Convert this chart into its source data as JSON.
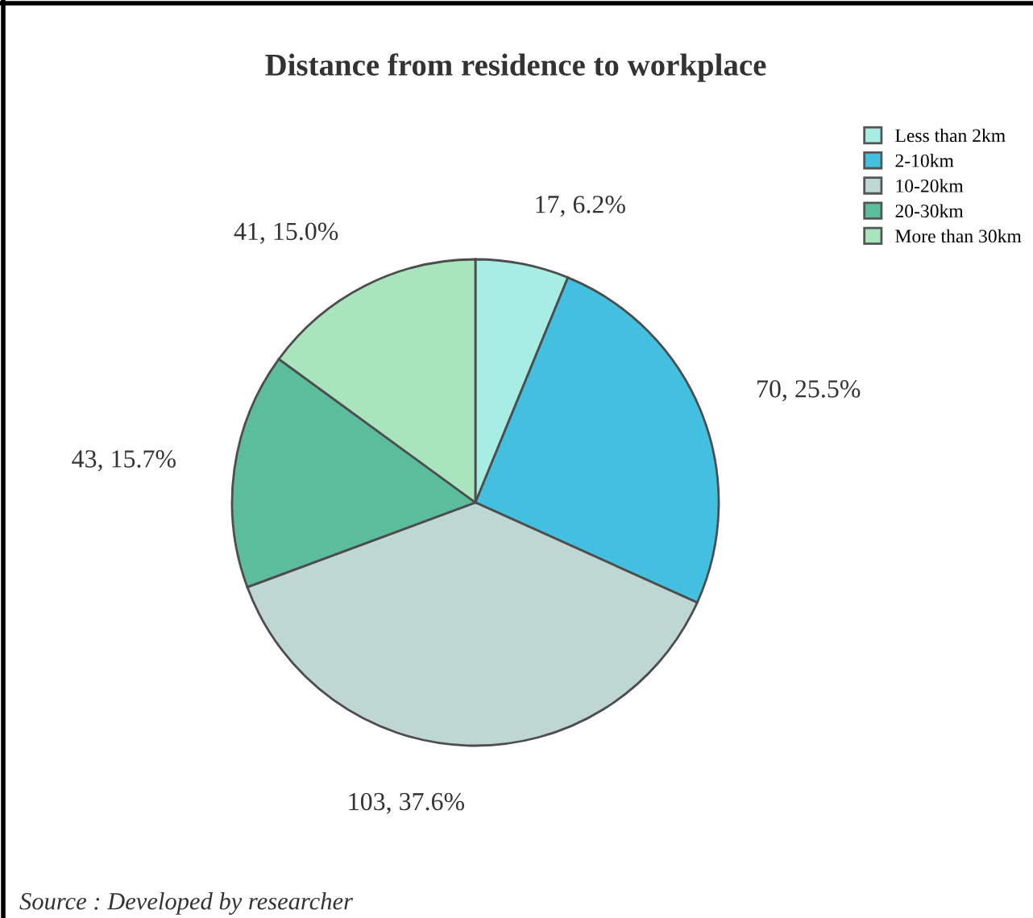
{
  "chart_data": {
    "type": "pie",
    "title": "Distance from residence to workplace",
    "categories": [
      "Less than 2km",
      "2-10km",
      "10-20km",
      "20-30km",
      "More than 30km"
    ],
    "values": [
      17,
      70,
      103,
      43,
      41
    ],
    "colors": [
      "#a8ede3",
      "#43bfe0",
      "#bed7d3",
      "#5cbd9c",
      "#a8e5bc"
    ],
    "value_labels": [
      "17, 6.2%",
      "70, 25.5%",
      "103, 37.6%",
      "43, 15.7%",
      "41, 15.0%"
    ],
    "legend": "top right",
    "annotations": [
      "Source : Developed by researcher"
    ]
  }
}
